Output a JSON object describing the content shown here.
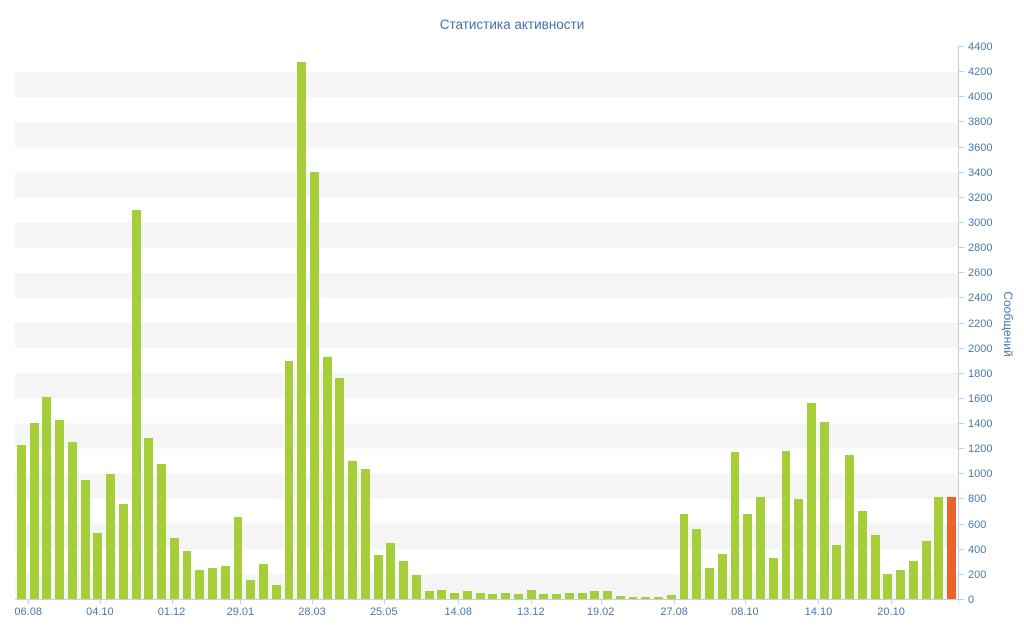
{
  "chart_data": {
    "type": "bar",
    "title": "Статистика активности",
    "ylabel": "Сообщений",
    "xlabel": "",
    "ylim": [
      0,
      4400
    ],
    "y_tick_step": 200,
    "y_tick_labels": [
      "0",
      "200",
      "400",
      "600",
      "800",
      "1000",
      "1200",
      "1400",
      "1600",
      "1800",
      "2000",
      "2200",
      "2400",
      "2600",
      "2800",
      "3000",
      "3200",
      "3400",
      "3600",
      "3800",
      "4000",
      "4200",
      "4400"
    ],
    "x_ticks": [
      {
        "label": "06.08",
        "pos": 1.4
      },
      {
        "label": "04.10",
        "pos": 9.0
      },
      {
        "label": "01.12",
        "pos": 16.6
      },
      {
        "label": "29.01",
        "pos": 23.9
      },
      {
        "label": "28.03",
        "pos": 31.5
      },
      {
        "label": "25.05",
        "pos": 39.1
      },
      {
        "label": "14.08",
        "pos": 47.0
      },
      {
        "label": "13.12",
        "pos": 54.7
      },
      {
        "label": "19.02",
        "pos": 62.1
      },
      {
        "label": "27.08",
        "pos": 69.9
      },
      {
        "label": "08.10",
        "pos": 77.4
      },
      {
        "label": "14.10",
        "pos": 85.2
      },
      {
        "label": "20.10",
        "pos": 92.9
      }
    ],
    "values": [
      1230,
      1400,
      1610,
      1430,
      1250,
      950,
      530,
      1000,
      760,
      3100,
      1280,
      1080,
      490,
      380,
      230,
      250,
      260,
      650,
      150,
      280,
      110,
      1900,
      4280,
      3400,
      1930,
      1760,
      1100,
      1040,
      350,
      450,
      300,
      190,
      60,
      70,
      50,
      60,
      50,
      40,
      50,
      40,
      70,
      40,
      40,
      50,
      50,
      60,
      65,
      25,
      15,
      15,
      20,
      30,
      680,
      560,
      250,
      360,
      1170,
      680,
      810,
      330,
      1180,
      800,
      1560,
      1410,
      430,
      1150,
      700,
      510,
      200,
      230,
      300,
      460,
      810,
      810
    ],
    "grid": "alternating-bands",
    "legend": "none",
    "y_axis_position": "right",
    "colors": {
      "bar": "#a5ce38",
      "highlight_last_bar": "#e8642b",
      "band": "#f5f5f5",
      "axis": "#c0d0e0",
      "label": "#4b79a9",
      "title": "#4572a7"
    }
  }
}
